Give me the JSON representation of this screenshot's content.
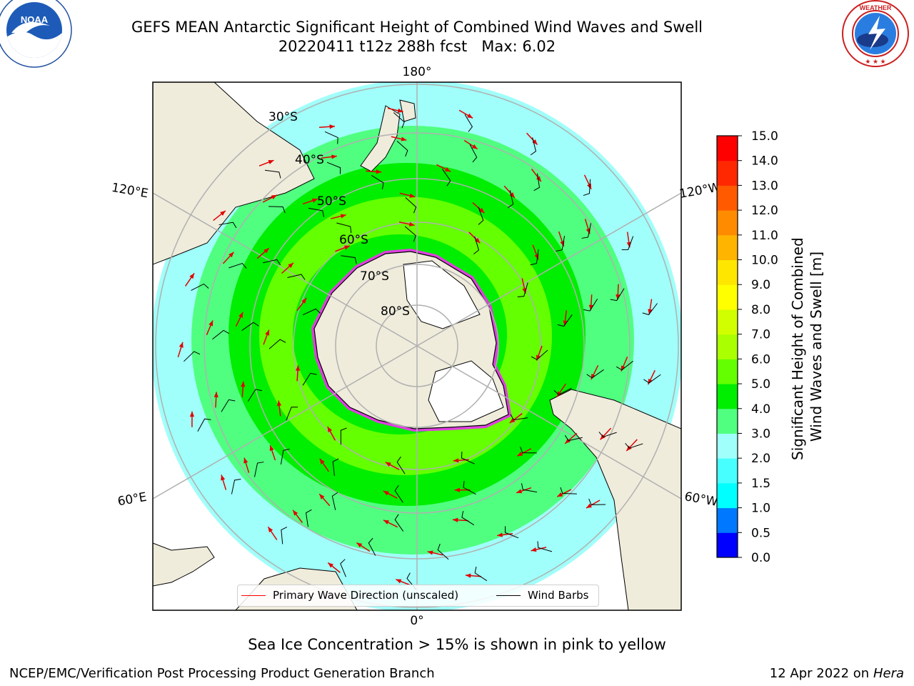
{
  "title": {
    "line1": "GEFS MEAN Antarctic Significant Height of Combined Wind Waves and Swell",
    "line2": "20220411 t12z 288h fcst   Max: 6.02"
  },
  "logos": {
    "left": {
      "icon": "noaa-logo-icon",
      "text": "NOAA",
      "ring_text": "NATIONAL OCEANIC AND ATMOSPHERIC ADMINISTRATION · U.S. DEPARTMENT OF COMMERCE"
    },
    "right": {
      "icon": "nws-logo-icon",
      "ring_text": "NATIONAL WEATHER SERVICE"
    }
  },
  "map": {
    "projection": "south-polar-stereographic",
    "longitude_labels": {
      "top": "180°",
      "bottom": "0°",
      "left_upper": "120°E",
      "left_lower": "60°E",
      "right_upper": "120°W",
      "right_lower": "60°W"
    },
    "latitude_labels": [
      "30°S",
      "40°S",
      "50°S",
      "60°S",
      "70°S",
      "80°S"
    ],
    "colors": {
      "land": "#efecdc",
      "ice_edge": "#e040e0",
      "ocean_ring_colors": [
        "#a0fffa",
        "#50ff80",
        "#00ee00",
        "#64ff00"
      ]
    }
  },
  "legend": {
    "wave_label": "Primary Wave Direction (unscaled)",
    "barb_label": "Wind Barbs",
    "wave_color": "#ff0000",
    "barb_color": "#000000"
  },
  "colorbar": {
    "label_line1": "Significant Height of Combined",
    "label_line2": "Wind Waves and Swell [m]",
    "ticks": [
      "0.0",
      "0.5",
      "1.0",
      "1.5",
      "2.0",
      "3.0",
      "4.0",
      "5.0",
      "6.0",
      "7.0",
      "8.0",
      "9.0",
      "10.0",
      "11.0",
      "12.0",
      "13.0",
      "14.0",
      "15.0"
    ],
    "colors": [
      "#0000ff",
      "#0078ff",
      "#00ffff",
      "#48ffff",
      "#a0fffa",
      "#50ff80",
      "#00ee00",
      "#64ff00",
      "#aaff00",
      "#d2ff00",
      "#ffff00",
      "#ffe600",
      "#ffb400",
      "#ff8c00",
      "#ff5a00",
      "#ff2800",
      "#ff0000"
    ]
  },
  "bottom_note": "Sea Ice Concentration > 15% is shown in pink to yellow",
  "footer": {
    "left": "NCEP/EMC/Verification Post Processing Product Generation Branch",
    "right_prefix": "12 Apr 2022 on ",
    "right_host": "Hera"
  }
}
